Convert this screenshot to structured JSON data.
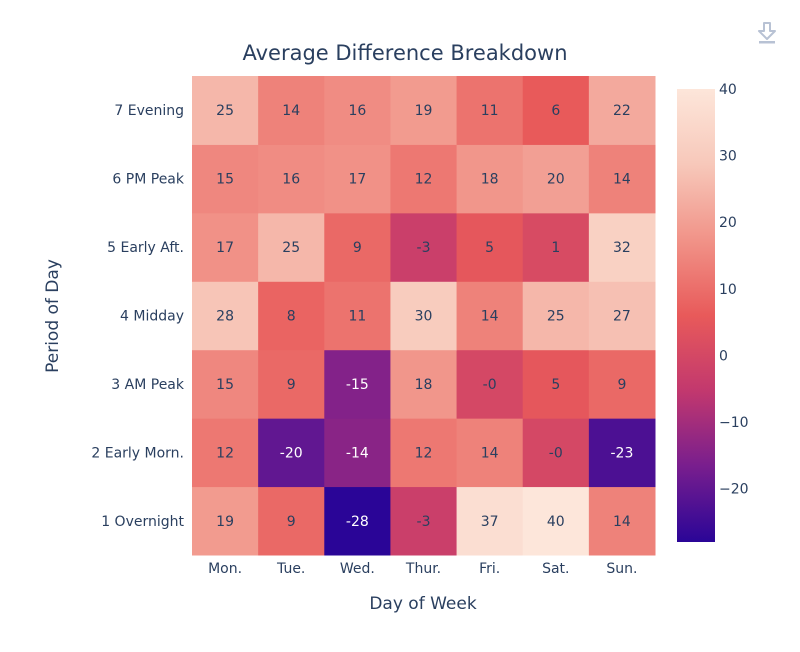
{
  "toolbar": {
    "download_icon": "download-icon"
  },
  "chart_data": {
    "type": "heatmap",
    "title": "Average Difference Breakdown",
    "xlabel": "Day of Week",
    "ylabel": "Period of Day",
    "x": [
      "Mon.",
      "Tue.",
      "Wed.",
      "Thur.",
      "Fri.",
      "Sat.",
      "Sun."
    ],
    "y": [
      "1 Overnight",
      "2 Early Morn.",
      "3 AM Peak",
      "4 Midday",
      "5 Early Aft.",
      "6 PM Peak",
      "7 Evening"
    ],
    "z": [
      [
        "19",
        "9",
        "-28",
        "-3",
        "37",
        "40",
        "14"
      ],
      [
        "12",
        "-20",
        "-14",
        "12",
        "14",
        "-0",
        "-23"
      ],
      [
        "15",
        "9",
        "-15",
        "18",
        "-0",
        "5",
        "9"
      ],
      [
        "28",
        "8",
        "11",
        "30",
        "14",
        "25",
        "27"
      ],
      [
        "17",
        "25",
        "9",
        "-3",
        "5",
        "1",
        "32"
      ],
      [
        "15",
        "16",
        "17",
        "12",
        "18",
        "20",
        "14"
      ],
      [
        "25",
        "14",
        "16",
        "19",
        "11",
        "6",
        "22"
      ]
    ],
    "zmin": -28,
    "zmax": 40,
    "colorscale": [
      "#2a0597",
      "#781e8e",
      "#c2386e",
      "#e85a5a",
      "#f19388",
      "#f7c8ba",
      "#fde6da"
    ],
    "colorbar": {
      "ticks": [
        "40",
        "30",
        "20",
        "10",
        "0",
        "−10",
        "−20"
      ],
      "tick_values": [
        40,
        30,
        20,
        10,
        0,
        -10,
        -20
      ]
    }
  }
}
